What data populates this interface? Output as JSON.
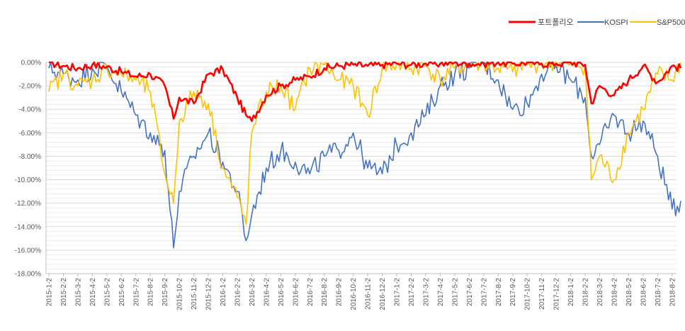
{
  "chart_data": {
    "type": "line",
    "title": "",
    "xlabel": "",
    "ylabel": "",
    "ylim": [
      -18,
      0
    ],
    "y_tick_values": [
      0,
      -2,
      -4,
      -6,
      -8,
      -10,
      -12,
      -14,
      -16,
      -18
    ],
    "y_tick_labels": [
      "0.00%",
      "-2.00%",
      "-4.00%",
      "-6.00%",
      "-8.00%",
      "-10.00%",
      "-12.00%",
      "-14.00%",
      "-16.00%",
      "-18.00%"
    ],
    "x_tick_labels": [
      "2015-1-2",
      "2015-2-2",
      "2015-3-2",
      "2015-4-2",
      "2015-5-2",
      "2015-6-2",
      "2015-7-2",
      "2015-8-2",
      "2015-9-2",
      "2015-10-2",
      "2015-11-2",
      "2015-12-2",
      "2016-1-2",
      "2016-2-2",
      "2016-3-2",
      "2016-4-2",
      "2016-5-2",
      "2016-6-2",
      "2016-7-2",
      "2016-8-2",
      "2016-9-2",
      "2016-10-2",
      "2016-11-2",
      "2016-12-2",
      "2017-1-2",
      "2017-2-2",
      "2017-3-2",
      "2017-4-2",
      "2017-5-2",
      "2017-6-2",
      "2017-7-2",
      "2017-8-2",
      "2017-9-2",
      "2017-10-2",
      "2017-11-2",
      "2017-12-2",
      "2018-1-2",
      "2018-2-2",
      "2018-3-2",
      "2018-4-2",
      "2018-5-2",
      "2018-6-2",
      "2018-7-2",
      "2018-8-2"
    ],
    "grid": "horizontal",
    "legend_position": "top-right",
    "series": [
      {
        "name": "포트폴리오",
        "color": "#ff0000",
        "x": [
          "2015-1-2",
          "2015-2-2",
          "2015-3-2",
          "2015-4-2",
          "2015-5-2",
          "2015-6-2",
          "2015-7-2",
          "2015-8-2",
          "2015-9-2",
          "2015-9-20",
          "2015-10-2",
          "2015-11-2",
          "2015-12-2",
          "2016-1-2",
          "2016-2-2",
          "2016-2-20",
          "2016-3-2",
          "2016-4-2",
          "2016-5-2",
          "2016-6-2",
          "2016-7-2",
          "2016-8-2",
          "2016-9-2",
          "2016-10-2",
          "2016-11-2",
          "2016-12-2",
          "2017-1-2",
          "2017-2-2",
          "2017-3-2",
          "2017-4-2",
          "2017-5-2",
          "2017-6-2",
          "2017-7-2",
          "2017-8-2",
          "2017-9-2",
          "2017-10-2",
          "2017-11-2",
          "2017-12-2",
          "2018-1-2",
          "2018-2-2",
          "2018-2-15",
          "2018-3-2",
          "2018-4-2",
          "2018-5-2",
          "2018-6-2",
          "2018-7-2",
          "2018-8-2",
          "2018-8-20"
        ],
        "y": [
          0,
          -0.3,
          -0.5,
          -0.2,
          -0.4,
          -0.8,
          -1.2,
          -1.0,
          -2.0,
          -4.8,
          -3.0,
          -3.5,
          -1.0,
          -0.6,
          -3.0,
          -4.5,
          -5.0,
          -2.8,
          -2.0,
          -1.5,
          -1.2,
          -0.5,
          -0.3,
          -0.2,
          -0.3,
          -0.2,
          -0.1,
          -0.2,
          -0.1,
          -0.1,
          0,
          -0.1,
          -0.1,
          0,
          -0.1,
          0,
          -0.1,
          -0.1,
          0,
          -0.2,
          -3.5,
          -2.0,
          -2.8,
          -1.5,
          -0.3,
          -1.7,
          -0.3,
          -0.5
        ]
      },
      {
        "name": "KOSPI",
        "color": "#4472c4",
        "x": [
          "2015-1-2",
          "2015-2-2",
          "2015-3-2",
          "2015-4-2",
          "2015-5-2",
          "2015-6-2",
          "2015-7-2",
          "2015-8-2",
          "2015-9-2",
          "2015-9-20",
          "2015-10-2",
          "2015-11-2",
          "2015-12-2",
          "2016-1-2",
          "2016-2-2",
          "2016-2-20",
          "2016-3-2",
          "2016-4-2",
          "2016-5-2",
          "2016-6-2",
          "2016-7-2",
          "2016-8-2",
          "2016-9-2",
          "2016-10-2",
          "2016-11-2",
          "2016-12-2",
          "2017-1-2",
          "2017-2-2",
          "2017-3-2",
          "2017-4-2",
          "2017-5-2",
          "2017-6-2",
          "2017-7-2",
          "2017-8-2",
          "2017-9-2",
          "2017-10-2",
          "2017-11-2",
          "2017-12-2",
          "2018-1-2",
          "2018-2-2",
          "2018-2-15",
          "2018-3-2",
          "2018-4-2",
          "2018-5-2",
          "2018-6-2",
          "2018-7-2",
          "2018-8-2",
          "2018-8-20"
        ],
        "y": [
          -0.5,
          -1.0,
          -1.5,
          -0.5,
          -0.3,
          -2.5,
          -4.5,
          -6.0,
          -7.5,
          -15.8,
          -11.0,
          -8.0,
          -6.0,
          -8.5,
          -11.0,
          -15.2,
          -13.0,
          -9.0,
          -7.5,
          -8.5,
          -9.5,
          -8.0,
          -7.5,
          -6.0,
          -9.0,
          -9.5,
          -7.0,
          -6.0,
          -4.5,
          -2.0,
          -1.0,
          -0.5,
          0,
          -1.5,
          -4.0,
          -3.5,
          -1.0,
          -0.3,
          -1.5,
          -3.0,
          -8.0,
          -7.0,
          -4.5,
          -6.0,
          -5.0,
          -8.0,
          -12.5,
          -11.8
        ]
      },
      {
        "name": "S&P500",
        "color": "#ffc000",
        "x": [
          "2015-1-2",
          "2015-2-2",
          "2015-3-2",
          "2015-4-2",
          "2015-5-2",
          "2015-6-2",
          "2015-7-2",
          "2015-8-2",
          "2015-9-2",
          "2015-9-20",
          "2015-10-2",
          "2015-11-2",
          "2015-12-2",
          "2016-1-2",
          "2016-2-2",
          "2016-2-20",
          "2016-3-2",
          "2016-4-2",
          "2016-5-2",
          "2016-6-2",
          "2016-7-2",
          "2016-8-2",
          "2016-9-2",
          "2016-10-2",
          "2016-11-2",
          "2016-12-2",
          "2017-1-2",
          "2017-2-2",
          "2017-3-2",
          "2017-4-2",
          "2017-5-2",
          "2017-6-2",
          "2017-7-2",
          "2017-8-2",
          "2017-9-2",
          "2017-10-2",
          "2017-11-2",
          "2017-12-2",
          "2018-1-2",
          "2018-2-2",
          "2018-2-15",
          "2018-3-2",
          "2018-4-2",
          "2018-5-2",
          "2018-6-2",
          "2018-7-2",
          "2018-8-2",
          "2018-8-20"
        ],
        "y": [
          -2.5,
          -1.0,
          -2.0,
          -1.5,
          -0.5,
          -1.0,
          -1.5,
          -2.5,
          -9.5,
          -12.0,
          -5.0,
          -2.5,
          -3.5,
          -9.0,
          -11.5,
          -13.8,
          -6.0,
          -2.5,
          -2.0,
          -4.0,
          -0.5,
          -0.2,
          -1.5,
          -2.0,
          -4.5,
          -0.5,
          -0.2,
          -0.5,
          -0.3,
          -1.5,
          -0.5,
          -0.2,
          -0.1,
          -0.5,
          -0.8,
          -0.2,
          -0.1,
          0,
          -0.1,
          -0.3,
          -10.0,
          -8.0,
          -10.0,
          -6.0,
          -4.0,
          -1.0,
          -1.5,
          0
        ]
      }
    ]
  }
}
